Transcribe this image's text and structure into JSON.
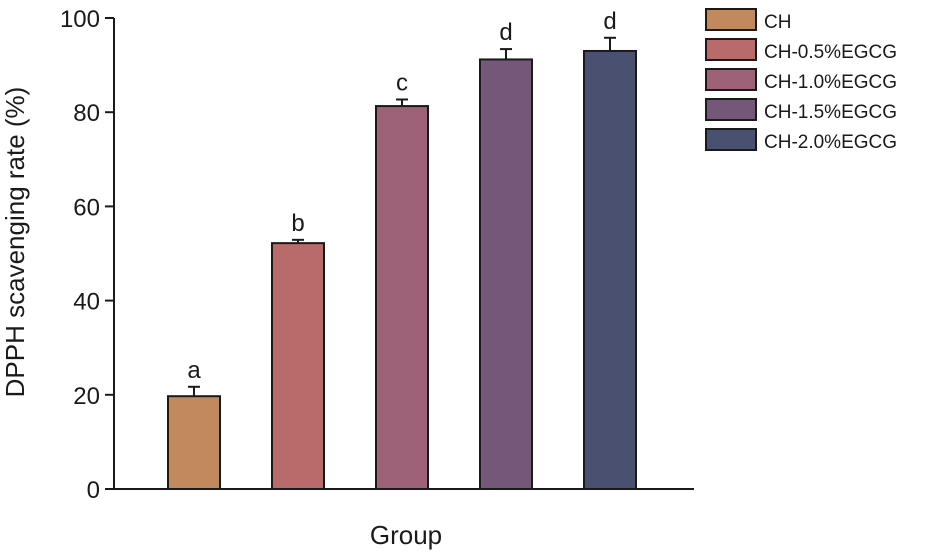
{
  "chart_data": {
    "type": "bar",
    "title": "",
    "xlabel": "Group",
    "ylabel": "DPPH scavenging rate (%)",
    "ylim": [
      0,
      100
    ],
    "yticks": [
      0,
      20,
      40,
      60,
      80,
      100
    ],
    "grid": false,
    "legend_position": "top-right",
    "categories": [
      "CH",
      "CH-0.5%EGCG",
      "CH-1.0%EGCG",
      "CH-1.5%EGCG",
      "CH-2.0%EGCG"
    ],
    "values": [
      19.7,
      52.2,
      81.3,
      91.2,
      93.0
    ],
    "errors": [
      2.0,
      0.7,
      1.4,
      2.2,
      2.8
    ],
    "significance": [
      "a",
      "b",
      "c",
      "d",
      "d"
    ],
    "colors": [
      "#c28a5c",
      "#b86b6a",
      "#9d6278",
      "#745779",
      "#4a5070"
    ]
  }
}
